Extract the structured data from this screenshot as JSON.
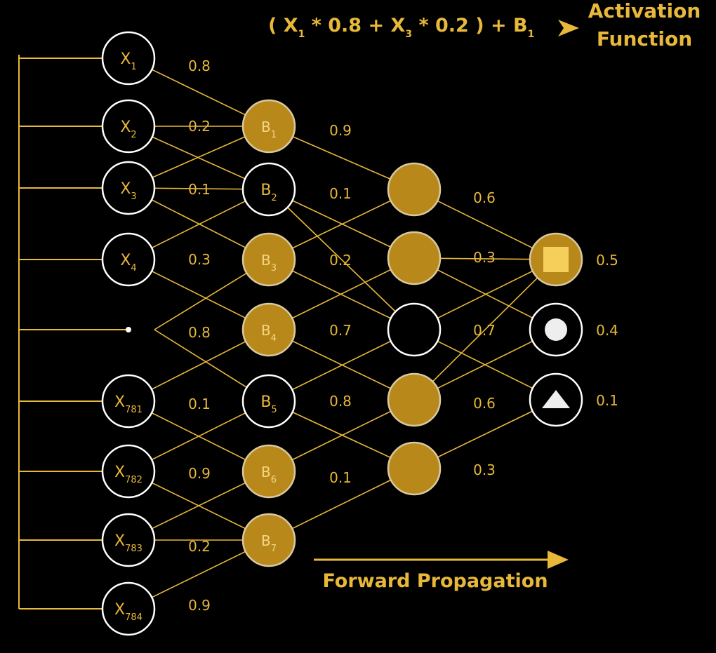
{
  "formula": {
    "text": "( X1 * 0.8 + X3 * 0.2 ) + B1",
    "parts": [
      "( X",
      "1",
      " * 0.8 + X",
      "3",
      " * 0.2 ) + B",
      "1"
    ]
  },
  "activation_label": {
    "line1": "Activation",
    "line2": "Function"
  },
  "forward_label": "Forward Propagation",
  "inputs": [
    {
      "base": "X",
      "sub": "1"
    },
    {
      "base": "X",
      "sub": "2"
    },
    {
      "base": "X",
      "sub": "3"
    },
    {
      "base": "X",
      "sub": "4"
    },
    {
      "base": "X",
      "sub": "781"
    },
    {
      "base": "X",
      "sub": "782"
    },
    {
      "base": "X",
      "sub": "783"
    },
    {
      "base": "X",
      "sub": "784"
    }
  ],
  "hidden1": [
    {
      "base": "B",
      "sub": "1",
      "filled": true
    },
    {
      "base": "B",
      "sub": "2",
      "filled": false
    },
    {
      "base": "B",
      "sub": "3",
      "filled": true
    },
    {
      "base": "B",
      "sub": "4",
      "filled": true
    },
    {
      "base": "B",
      "sub": "5",
      "filled": false
    },
    {
      "base": "B",
      "sub": "6",
      "filled": true
    },
    {
      "base": "B",
      "sub": "7",
      "filled": true
    }
  ],
  "hidden2_filled": [
    true,
    true,
    false,
    true,
    true
  ],
  "outputs": [
    {
      "shape": "square",
      "value": "0.5",
      "filled": true
    },
    {
      "shape": "circle",
      "value": "0.4",
      "filled": false
    },
    {
      "shape": "triangle",
      "value": "0.1",
      "filled": false
    }
  ],
  "weights_layer1": [
    "0.8",
    "0.2",
    "0.1",
    "0.3",
    "0.8",
    "0.1",
    "0.9",
    "0.2",
    "0.9"
  ],
  "weights_layer2": [
    "0.9",
    "0.1",
    "0.2",
    "0.7",
    "0.8",
    "0.1"
  ],
  "weights_layer3": [
    "0.6",
    "0.3",
    "0.7",
    "0.6",
    "0.3"
  ],
  "colors": {
    "accent": "#e8b83a",
    "node_fill": "#b8891a",
    "background": "#000000",
    "outline": "#ffffff"
  }
}
